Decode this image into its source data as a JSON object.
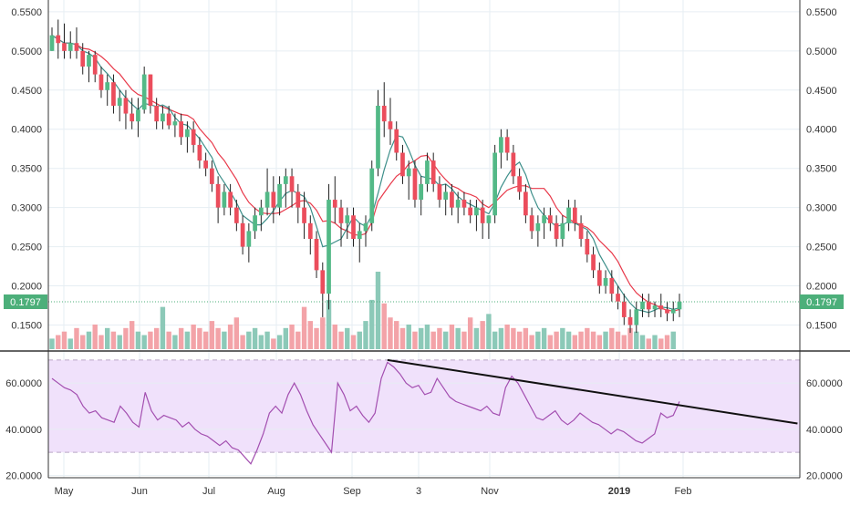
{
  "chart_data": [
    {
      "type": "candlestick",
      "name": "price-panel",
      "x_axis_labels": [
        "May",
        "Jun",
        "Jul",
        "Aug",
        "Sep",
        "3",
        "Nov",
        "2019",
        "Feb"
      ],
      "x_axis_bold": "2019",
      "y_ticks": [
        "0.5500",
        "0.5000",
        "0.4500",
        "0.4000",
        "0.3500",
        "0.3000",
        "0.2500",
        "0.2000",
        "0.1500"
      ],
      "y_range": [
        0.12,
        0.56
      ],
      "last_price_label": "0.1797",
      "last_price": 0.1797,
      "ohlc": [
        [
          0.5,
          0.53,
          0.5,
          0.52
        ],
        [
          0.52,
          0.54,
          0.49,
          0.51
        ],
        [
          0.51,
          0.535,
          0.49,
          0.5
        ],
        [
          0.5,
          0.525,
          0.49,
          0.51
        ],
        [
          0.51,
          0.53,
          0.49,
          0.5
        ],
        [
          0.5,
          0.51,
          0.47,
          0.48
        ],
        [
          0.48,
          0.5,
          0.46,
          0.495
        ],
        [
          0.495,
          0.5,
          0.46,
          0.47
        ],
        [
          0.47,
          0.48,
          0.44,
          0.45
        ],
        [
          0.45,
          0.47,
          0.43,
          0.46
        ],
        [
          0.46,
          0.47,
          0.42,
          0.43
        ],
        [
          0.43,
          0.45,
          0.41,
          0.44
        ],
        [
          0.44,
          0.45,
          0.4,
          0.42
        ],
        [
          0.42,
          0.44,
          0.4,
          0.41
        ],
        [
          0.41,
          0.44,
          0.39,
          0.425
        ],
        [
          0.425,
          0.48,
          0.42,
          0.47
        ],
        [
          0.47,
          0.47,
          0.42,
          0.43
        ],
        [
          0.43,
          0.44,
          0.4,
          0.41
        ],
        [
          0.41,
          0.43,
          0.4,
          0.42
        ],
        [
          0.42,
          0.43,
          0.4,
          0.405
        ],
        [
          0.405,
          0.42,
          0.39,
          0.41
        ],
        [
          0.41,
          0.42,
          0.38,
          0.39
        ],
        [
          0.39,
          0.41,
          0.37,
          0.4
        ],
        [
          0.4,
          0.41,
          0.37,
          0.38
        ],
        [
          0.38,
          0.39,
          0.35,
          0.36
        ],
        [
          0.36,
          0.37,
          0.34,
          0.35
        ],
        [
          0.35,
          0.36,
          0.32,
          0.33
        ],
        [
          0.33,
          0.34,
          0.28,
          0.3
        ],
        [
          0.3,
          0.33,
          0.29,
          0.32
        ],
        [
          0.32,
          0.33,
          0.29,
          0.3
        ],
        [
          0.3,
          0.31,
          0.27,
          0.28
        ],
        [
          0.28,
          0.29,
          0.24,
          0.25
        ],
        [
          0.25,
          0.28,
          0.23,
          0.27
        ],
        [
          0.27,
          0.3,
          0.26,
          0.29
        ],
        [
          0.29,
          0.31,
          0.27,
          0.3
        ],
        [
          0.3,
          0.35,
          0.29,
          0.32
        ],
        [
          0.32,
          0.34,
          0.28,
          0.3
        ],
        [
          0.3,
          0.34,
          0.29,
          0.33
        ],
        [
          0.33,
          0.35,
          0.3,
          0.34
        ],
        [
          0.34,
          0.35,
          0.3,
          0.32
        ],
        [
          0.32,
          0.33,
          0.28,
          0.3
        ],
        [
          0.3,
          0.32,
          0.26,
          0.28
        ],
        [
          0.28,
          0.29,
          0.24,
          0.26
        ],
        [
          0.26,
          0.27,
          0.21,
          0.22
        ],
        [
          0.22,
          0.23,
          0.16,
          0.19
        ],
        [
          0.19,
          0.33,
          0.17,
          0.31
        ],
        [
          0.31,
          0.34,
          0.28,
          0.3
        ],
        [
          0.3,
          0.31,
          0.25,
          0.28
        ],
        [
          0.28,
          0.3,
          0.26,
          0.29
        ],
        [
          0.29,
          0.3,
          0.25,
          0.26
        ],
        [
          0.26,
          0.28,
          0.23,
          0.27
        ],
        [
          0.27,
          0.29,
          0.25,
          0.28
        ],
        [
          0.28,
          0.36,
          0.27,
          0.35
        ],
        [
          0.35,
          0.45,
          0.34,
          0.43
        ],
        [
          0.43,
          0.46,
          0.39,
          0.41
        ],
        [
          0.41,
          0.44,
          0.38,
          0.4
        ],
        [
          0.4,
          0.41,
          0.36,
          0.37
        ],
        [
          0.37,
          0.38,
          0.33,
          0.34
        ],
        [
          0.34,
          0.36,
          0.31,
          0.35
        ],
        [
          0.35,
          0.36,
          0.3,
          0.31
        ],
        [
          0.31,
          0.34,
          0.29,
          0.33
        ],
        [
          0.33,
          0.37,
          0.32,
          0.36
        ],
        [
          0.36,
          0.37,
          0.32,
          0.33
        ],
        [
          0.33,
          0.34,
          0.3,
          0.31
        ],
        [
          0.31,
          0.33,
          0.29,
          0.32
        ],
        [
          0.32,
          0.33,
          0.29,
          0.3
        ],
        [
          0.3,
          0.32,
          0.28,
          0.31
        ],
        [
          0.31,
          0.32,
          0.29,
          0.3
        ],
        [
          0.3,
          0.31,
          0.28,
          0.29
        ],
        [
          0.29,
          0.31,
          0.27,
          0.3
        ],
        [
          0.3,
          0.31,
          0.26,
          0.28
        ],
        [
          0.28,
          0.29,
          0.26,
          0.29
        ],
        [
          0.29,
          0.38,
          0.28,
          0.37
        ],
        [
          0.37,
          0.4,
          0.35,
          0.39
        ],
        [
          0.39,
          0.4,
          0.36,
          0.37
        ],
        [
          0.37,
          0.38,
          0.33,
          0.34
        ],
        [
          0.34,
          0.35,
          0.31,
          0.32
        ],
        [
          0.32,
          0.33,
          0.28,
          0.29
        ],
        [
          0.29,
          0.3,
          0.26,
          0.27
        ],
        [
          0.27,
          0.29,
          0.25,
          0.28
        ],
        [
          0.28,
          0.3,
          0.26,
          0.29
        ],
        [
          0.29,
          0.3,
          0.27,
          0.28
        ],
        [
          0.28,
          0.29,
          0.25,
          0.26
        ],
        [
          0.26,
          0.29,
          0.25,
          0.28
        ],
        [
          0.28,
          0.31,
          0.27,
          0.3
        ],
        [
          0.3,
          0.31,
          0.27,
          0.28
        ],
        [
          0.28,
          0.29,
          0.25,
          0.26
        ],
        [
          0.26,
          0.27,
          0.23,
          0.24
        ],
        [
          0.24,
          0.25,
          0.21,
          0.22
        ],
        [
          0.22,
          0.23,
          0.19,
          0.2
        ],
        [
          0.2,
          0.22,
          0.19,
          0.21
        ],
        [
          0.21,
          0.22,
          0.18,
          0.19
        ],
        [
          0.19,
          0.2,
          0.17,
          0.18
        ],
        [
          0.18,
          0.19,
          0.15,
          0.16
        ],
        [
          0.16,
          0.17,
          0.14,
          0.15
        ],
        [
          0.15,
          0.18,
          0.14,
          0.17
        ],
        [
          0.17,
          0.19,
          0.16,
          0.18
        ],
        [
          0.18,
          0.19,
          0.16,
          0.17
        ],
        [
          0.17,
          0.18,
          0.16,
          0.175
        ],
        [
          0.175,
          0.19,
          0.16,
          0.17
        ],
        [
          0.17,
          0.18,
          0.155,
          0.165
        ],
        [
          0.165,
          0.18,
          0.155,
          0.17
        ],
        [
          0.17,
          0.19,
          0.16,
          0.1797
        ]
      ],
      "volume": [
        3,
        4,
        5,
        3,
        6,
        4,
        5,
        7,
        4,
        6,
        5,
        4,
        6,
        8,
        5,
        4,
        5,
        6,
        12,
        5,
        4,
        6,
        5,
        7,
        6,
        5,
        8,
        6,
        5,
        7,
        9,
        4,
        5,
        6,
        4,
        5,
        3,
        4,
        6,
        7,
        5,
        12,
        8,
        6,
        9,
        14,
        7,
        5,
        6,
        4,
        5,
        8,
        14,
        22,
        13,
        9,
        8,
        6,
        7,
        5,
        6,
        7,
        5,
        6,
        5,
        7,
        6,
        5,
        9,
        6,
        8,
        10,
        5,
        6,
        7,
        6,
        5,
        6,
        4,
        5,
        6,
        4,
        5,
        6,
        5,
        4,
        5,
        6,
        5,
        4,
        5,
        6,
        5,
        4,
        6,
        5,
        4,
        3,
        4,
        3,
        4,
        5
      ]
    },
    {
      "type": "line",
      "name": "rsi-panel",
      "y_ticks": [
        "60.0000",
        "40.0000",
        "20.0000"
      ],
      "y_range": [
        19,
        73
      ],
      "upper_band": 70,
      "lower_band": 30,
      "values": [
        62,
        60,
        58,
        57,
        55,
        50,
        47,
        48,
        45,
        44,
        43,
        50,
        47,
        43,
        41,
        56,
        48,
        44,
        46,
        45,
        44,
        41,
        43,
        40,
        38,
        37,
        35,
        33,
        35,
        32,
        31,
        28,
        25,
        31,
        38,
        47,
        50,
        47,
        55,
        60,
        55,
        48,
        42,
        38,
        34,
        30,
        60,
        55,
        48,
        50,
        46,
        43,
        47,
        62,
        69,
        67,
        64,
        60,
        58,
        59,
        55,
        56,
        62,
        58,
        54,
        52,
        51,
        50,
        49,
        48,
        50,
        47,
        46,
        58,
        63,
        60,
        55,
        50,
        45,
        44,
        46,
        48,
        44,
        42,
        44,
        47,
        45,
        43,
        42,
        40,
        38,
        40,
        39,
        37,
        35,
        34,
        36,
        38,
        47,
        45,
        46,
        52
      ],
      "trendline": {
        "from": [
          54,
          70
        ],
        "to": [
          120,
          42.5
        ]
      }
    }
  ]
}
